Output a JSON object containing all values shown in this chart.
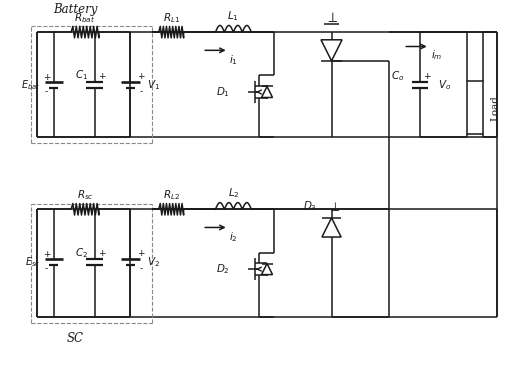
{
  "bg_color": "#ffffff",
  "line_color": "#1a1a1a",
  "dash_color": "#888888",
  "figsize": [
    5.29,
    3.83
  ],
  "dpi": 100,
  "lw": 1.1,
  "xlim": [
    0,
    10.6
  ],
  "ylim": [
    0,
    7.9
  ]
}
